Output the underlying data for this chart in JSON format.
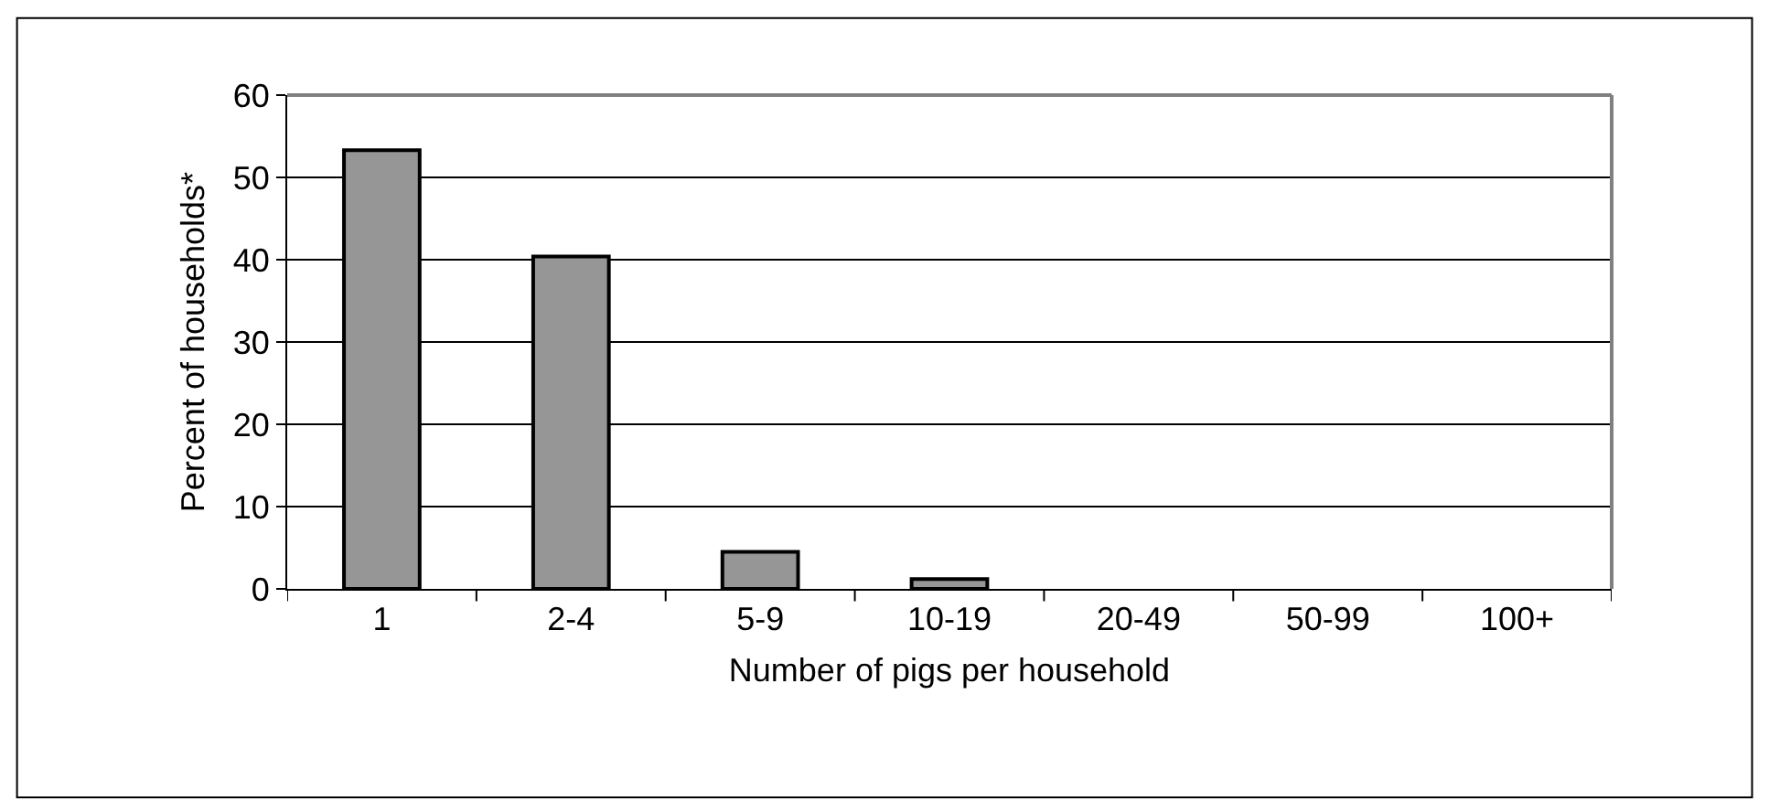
{
  "chart_data": {
    "type": "bar",
    "xlabel": "Number of pigs per household",
    "ylabel": "Percent of households*",
    "categories": [
      "1",
      "2-4",
      "5-9",
      "10-19",
      "20-49",
      "50-99",
      "100+"
    ],
    "values": [
      53.3,
      40.4,
      4.5,
      1.2,
      0,
      0,
      0
    ],
    "color": "#969696",
    "ylim": [
      0,
      60
    ],
    "yticks": [
      0,
      10,
      20,
      30,
      40,
      50,
      60
    ],
    "grid": "y",
    "legend": false
  }
}
